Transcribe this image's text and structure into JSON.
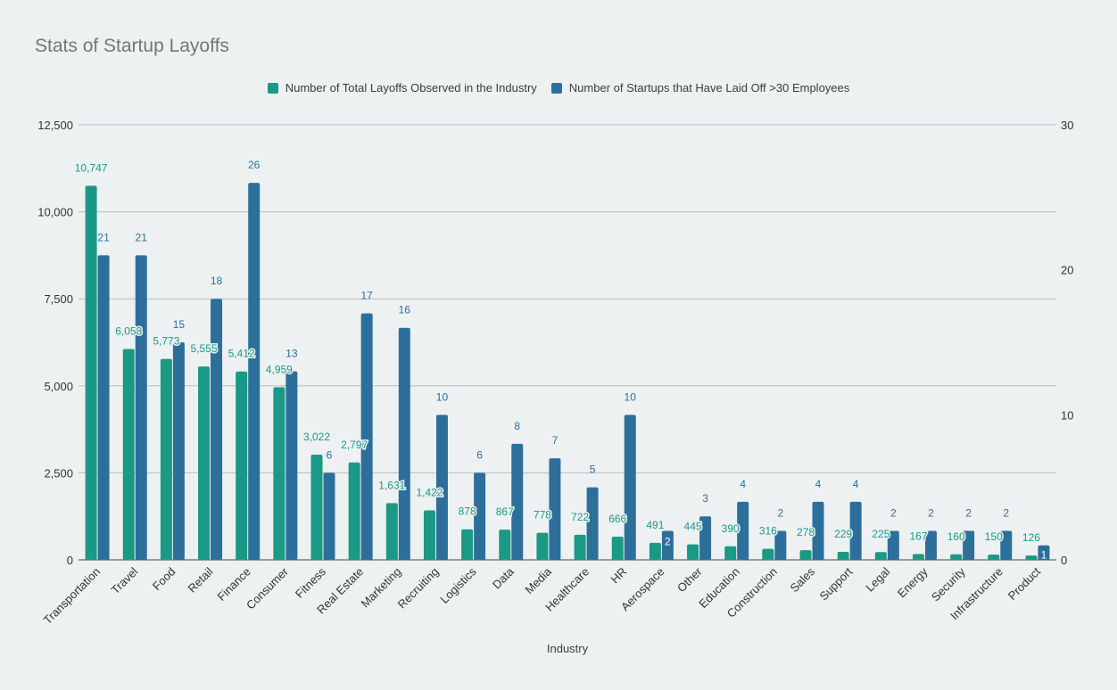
{
  "chart_data": {
    "type": "bar",
    "title": "Stats of Startup Layoffs",
    "xlabel": "Industry",
    "ylabel": "",
    "y2label": "",
    "ylim": [
      0,
      12500
    ],
    "y2lim": [
      0,
      30
    ],
    "yticks": [
      "0",
      "2,500",
      "5,000",
      "7,500",
      "10,000",
      "12,500"
    ],
    "y2ticks": [
      "0",
      "10",
      "20",
      "30"
    ],
    "grid": true,
    "legend_position": "top-center",
    "categories": [
      "Transportation",
      "Travel",
      "Food",
      "Retail",
      "Finance",
      "Consumer",
      "Fitness",
      "Real Estate",
      "Marketing",
      "Recruiting",
      "Logistics",
      "Data",
      "Media",
      "Healthcare",
      "HR",
      "Aerospace",
      "Other",
      "Education",
      "Construction",
      "Sales",
      "Support",
      "Legal",
      "Energy",
      "Security",
      "Infrastructure",
      "Product"
    ],
    "series": [
      {
        "name": "Number of Total Layoffs Observed in the Industry",
        "color": "#1a9985",
        "axis": "left",
        "values": [
          10747,
          6058,
          5773,
          5555,
          5412,
          4959,
          3022,
          2797,
          1631,
          1422,
          878,
          867,
          778,
          722,
          666,
          491,
          445,
          390,
          316,
          278,
          229,
          225,
          167,
          160,
          150,
          126
        ],
        "labels": [
          "10,747",
          "6,058",
          "5,773",
          "5,555",
          "5,412",
          "4,959",
          "3,022",
          "2,797",
          "1,631",
          "1,422",
          "878",
          "867",
          "778",
          "722",
          "666",
          "491",
          "445",
          "390",
          "316",
          "278",
          "229",
          "225",
          "167",
          "160",
          "150",
          "126"
        ]
      },
      {
        "name": "Number of Startups that Have Laid Off >30 Employees",
        "color": "#2d6f9b",
        "axis": "right",
        "values": [
          21,
          21,
          15,
          18,
          26,
          13,
          6,
          17,
          16,
          10,
          6,
          8,
          7,
          5,
          10,
          2,
          3,
          4,
          2,
          4,
          4,
          2,
          2,
          2,
          2,
          1
        ],
        "labels": [
          "21",
          "21",
          "15",
          "18",
          "26",
          "13",
          "6",
          "17",
          "16",
          "10",
          "6",
          "8",
          "7",
          "5",
          "10",
          "2",
          "3",
          "4",
          "2",
          "4",
          "4",
          "2",
          "2",
          "2",
          "2",
          "1"
        ]
      }
    ]
  }
}
